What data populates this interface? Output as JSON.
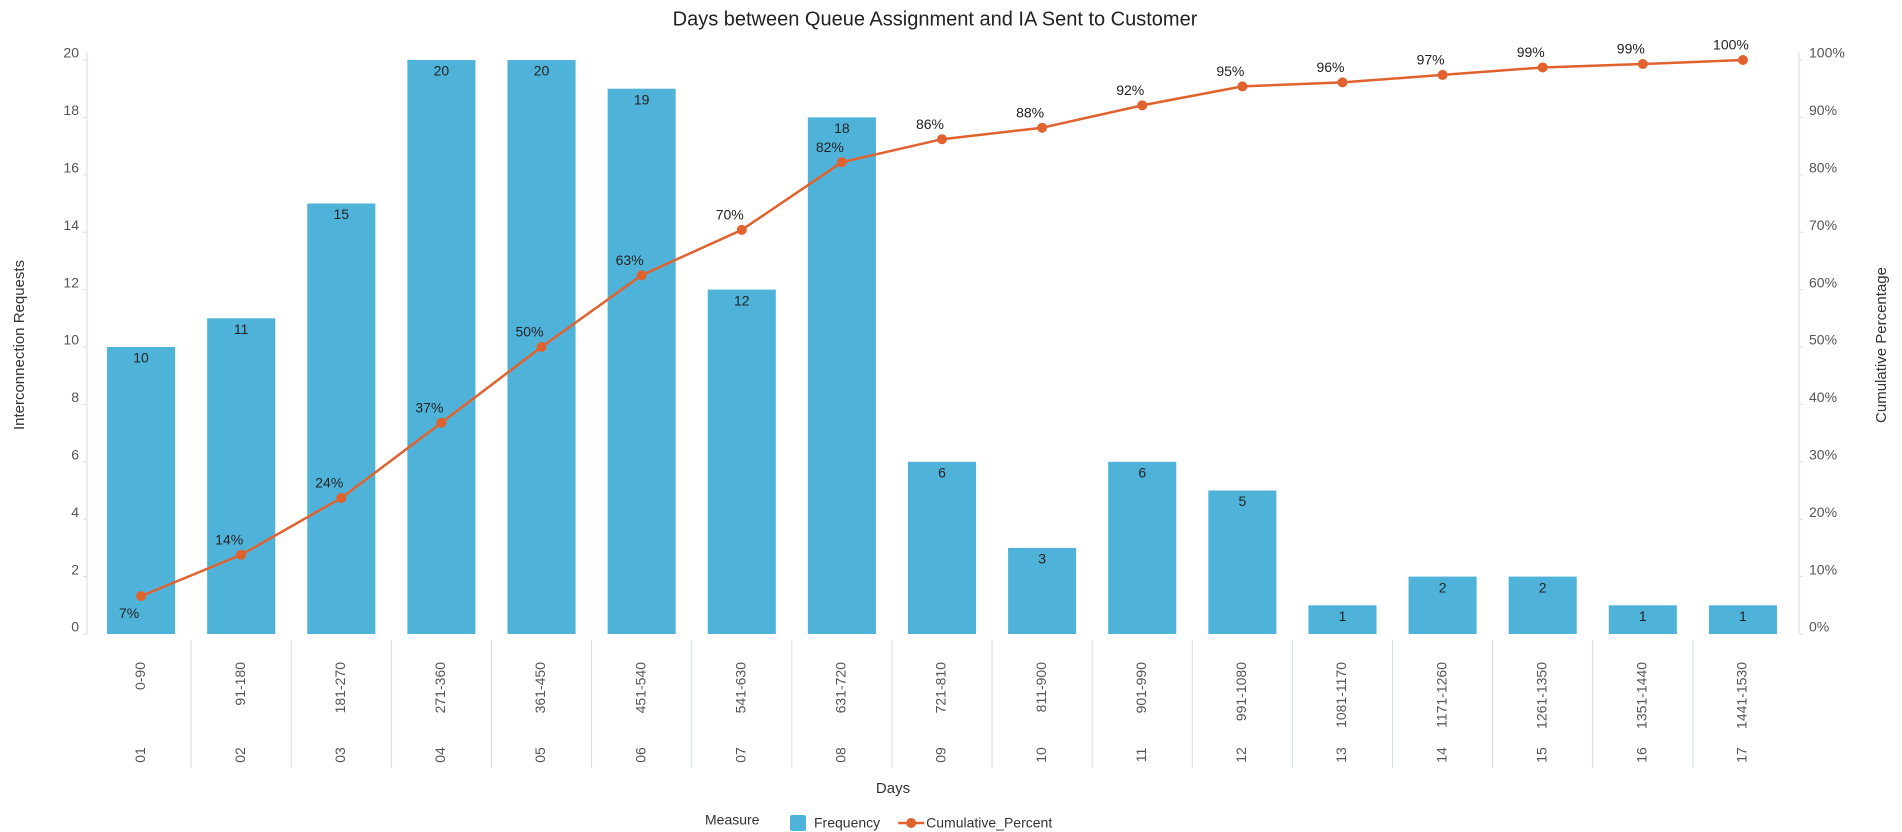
{
  "chart_data": {
    "type": "pareto",
    "title": "Days between Queue Assignment and IA Sent to Customer",
    "x_label": "Days",
    "y_label": "Interconnection Requests",
    "y2_label": "Cumulative Percentage",
    "legend_title": "Measure",
    "categories": [
      "0-90",
      "91-180",
      "181-270",
      "271-360",
      "361-450",
      "451-540",
      "541-630",
      "631-720",
      "721-810",
      "811-900",
      "901-990",
      "991-1080",
      "1081-1170",
      "1171-1260",
      "1261-1350",
      "1351-1440",
      "1441-1530"
    ],
    "category_codes": [
      "01",
      "02",
      "03",
      "04",
      "05",
      "06",
      "07",
      "08",
      "09",
      "10",
      "11",
      "12",
      "13",
      "14",
      "15",
      "16",
      "17"
    ],
    "series": [
      {
        "name": "Frequency",
        "type": "bar",
        "color": "#4fb3d9",
        "values": [
          10,
          11,
          15,
          20,
          20,
          19,
          12,
          18,
          6,
          3,
          6,
          5,
          1,
          2,
          2,
          1,
          1
        ]
      },
      {
        "name": "Cumulative_Percent",
        "type": "line",
        "axis": "y2",
        "color": "#e0622e",
        "values": [
          6.6,
          13.8,
          23.7,
          36.8,
          50,
          62.5,
          70.4,
          82.2,
          86.2,
          88.2,
          92.1,
          95.4,
          96.1,
          97.4,
          98.7,
          99.3,
          100
        ],
        "value_labels": [
          "7%",
          "14%",
          "24%",
          "37%",
          "50%",
          "63%",
          "70%",
          "82%",
          "86%",
          "88%",
          "92%",
          "95%",
          "96%",
          "97%",
          "99%",
          "99%",
          "100%"
        ]
      }
    ],
    "ylim": [
      0,
      20
    ],
    "yticks": [
      0,
      2,
      4,
      6,
      8,
      10,
      12,
      14,
      16,
      18,
      20
    ],
    "y2lim": [
      0,
      100
    ],
    "y2ticks": [
      {
        "value": 0,
        "label": "0%"
      },
      {
        "value": 10,
        "label": "10%"
      },
      {
        "value": 20,
        "label": "20%"
      },
      {
        "value": 30,
        "label": "30%"
      },
      {
        "value": 40,
        "label": "40%"
      },
      {
        "value": 50,
        "label": "50%"
      },
      {
        "value": 60,
        "label": "60%"
      },
      {
        "value": 70,
        "label": "70%"
      },
      {
        "value": 80,
        "label": "80%"
      },
      {
        "value": 90,
        "label": "90%"
      },
      {
        "value": 100,
        "label": "100%"
      }
    ],
    "legend": "bottom"
  }
}
